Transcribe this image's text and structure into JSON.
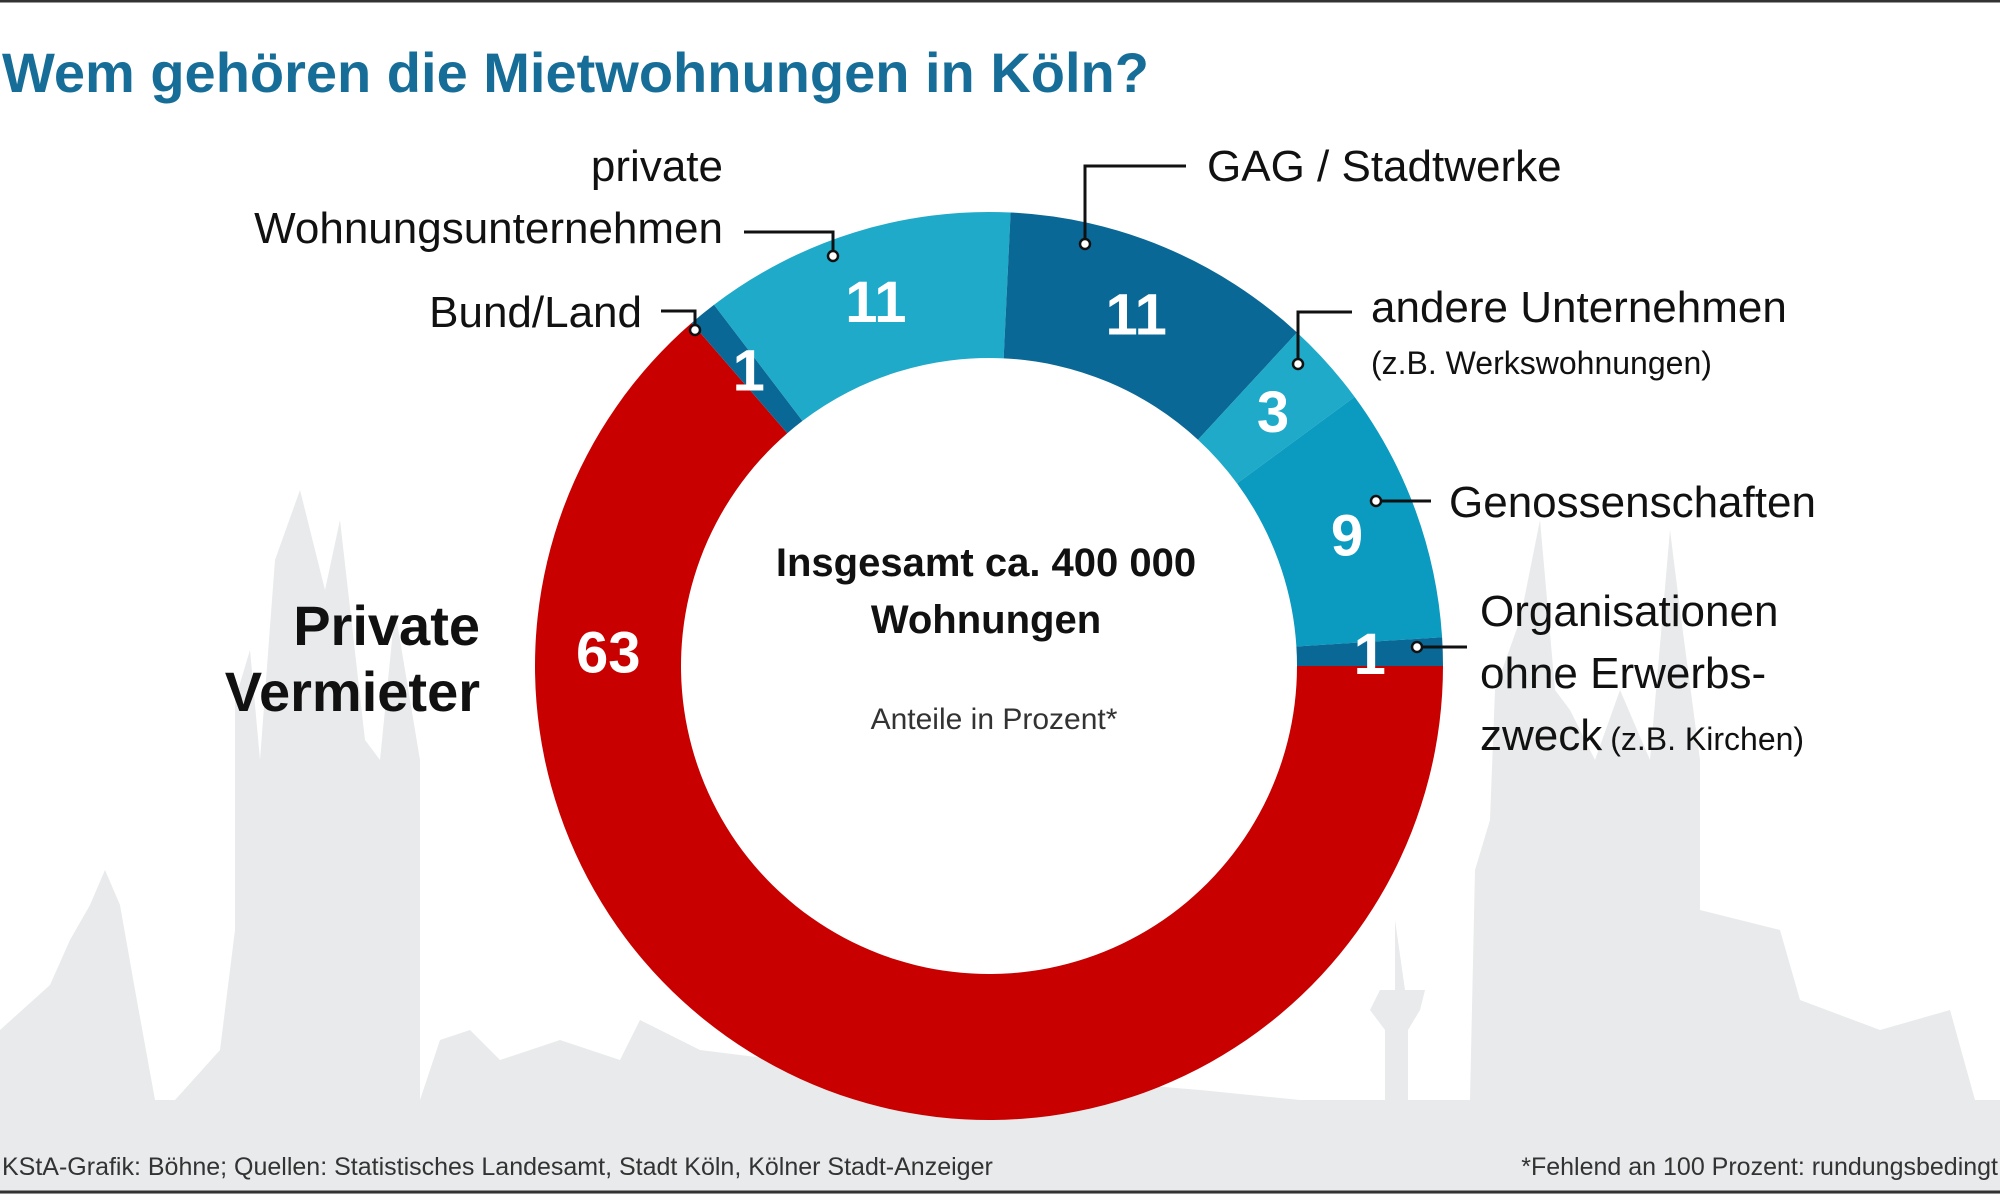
{
  "chart_data": {
    "type": "pie",
    "variant": "donut",
    "title": "Wem gehören die Mietwohnungen in Köln?",
    "center_text": [
      "Insgesamt ca. 400 000",
      "Wohnungen"
    ],
    "center_subtext": "Anteile in Prozent*",
    "unit": "Prozent",
    "segments": [
      {
        "label": [
          "Private",
          "Vermieter"
        ],
        "value": 63,
        "color": "#c80000"
      },
      {
        "label": [
          "Bund/Land"
        ],
        "value": 1,
        "color": "#0a6896"
      },
      {
        "label": [
          "private",
          "Wohnungsunternehmen"
        ],
        "value": 11,
        "color": "#1eaac8"
      },
      {
        "label": [
          "GAG / Stadtwerke"
        ],
        "value": 11,
        "color": "#0a6896"
      },
      {
        "label": [
          "andere Unternehmen"
        ],
        "note": "(z.B. Werkswohnungen)",
        "value": 3,
        "color": "#1eaac8"
      },
      {
        "label": [
          "Genossenschaften"
        ],
        "value": 9,
        "color": "#0b9ac0"
      },
      {
        "label": [
          "Organisationen",
          "ohne Erwerbs-",
          "zweck"
        ],
        "note": "(z.B. Kirchen)",
        "value": 1,
        "color": "#0a6896"
      }
    ]
  },
  "footer": {
    "source": "KStA-Grafik: Böhne; Quellen: Statistisches Landesamt, Stadt Köln, Kölner Stadt-Anzeiger",
    "footnote": "*Fehlend an 100 Prozent: rundungsbedingt"
  },
  "colors": {
    "title": "#166e98",
    "background_skyline": "#e8eaeb"
  }
}
